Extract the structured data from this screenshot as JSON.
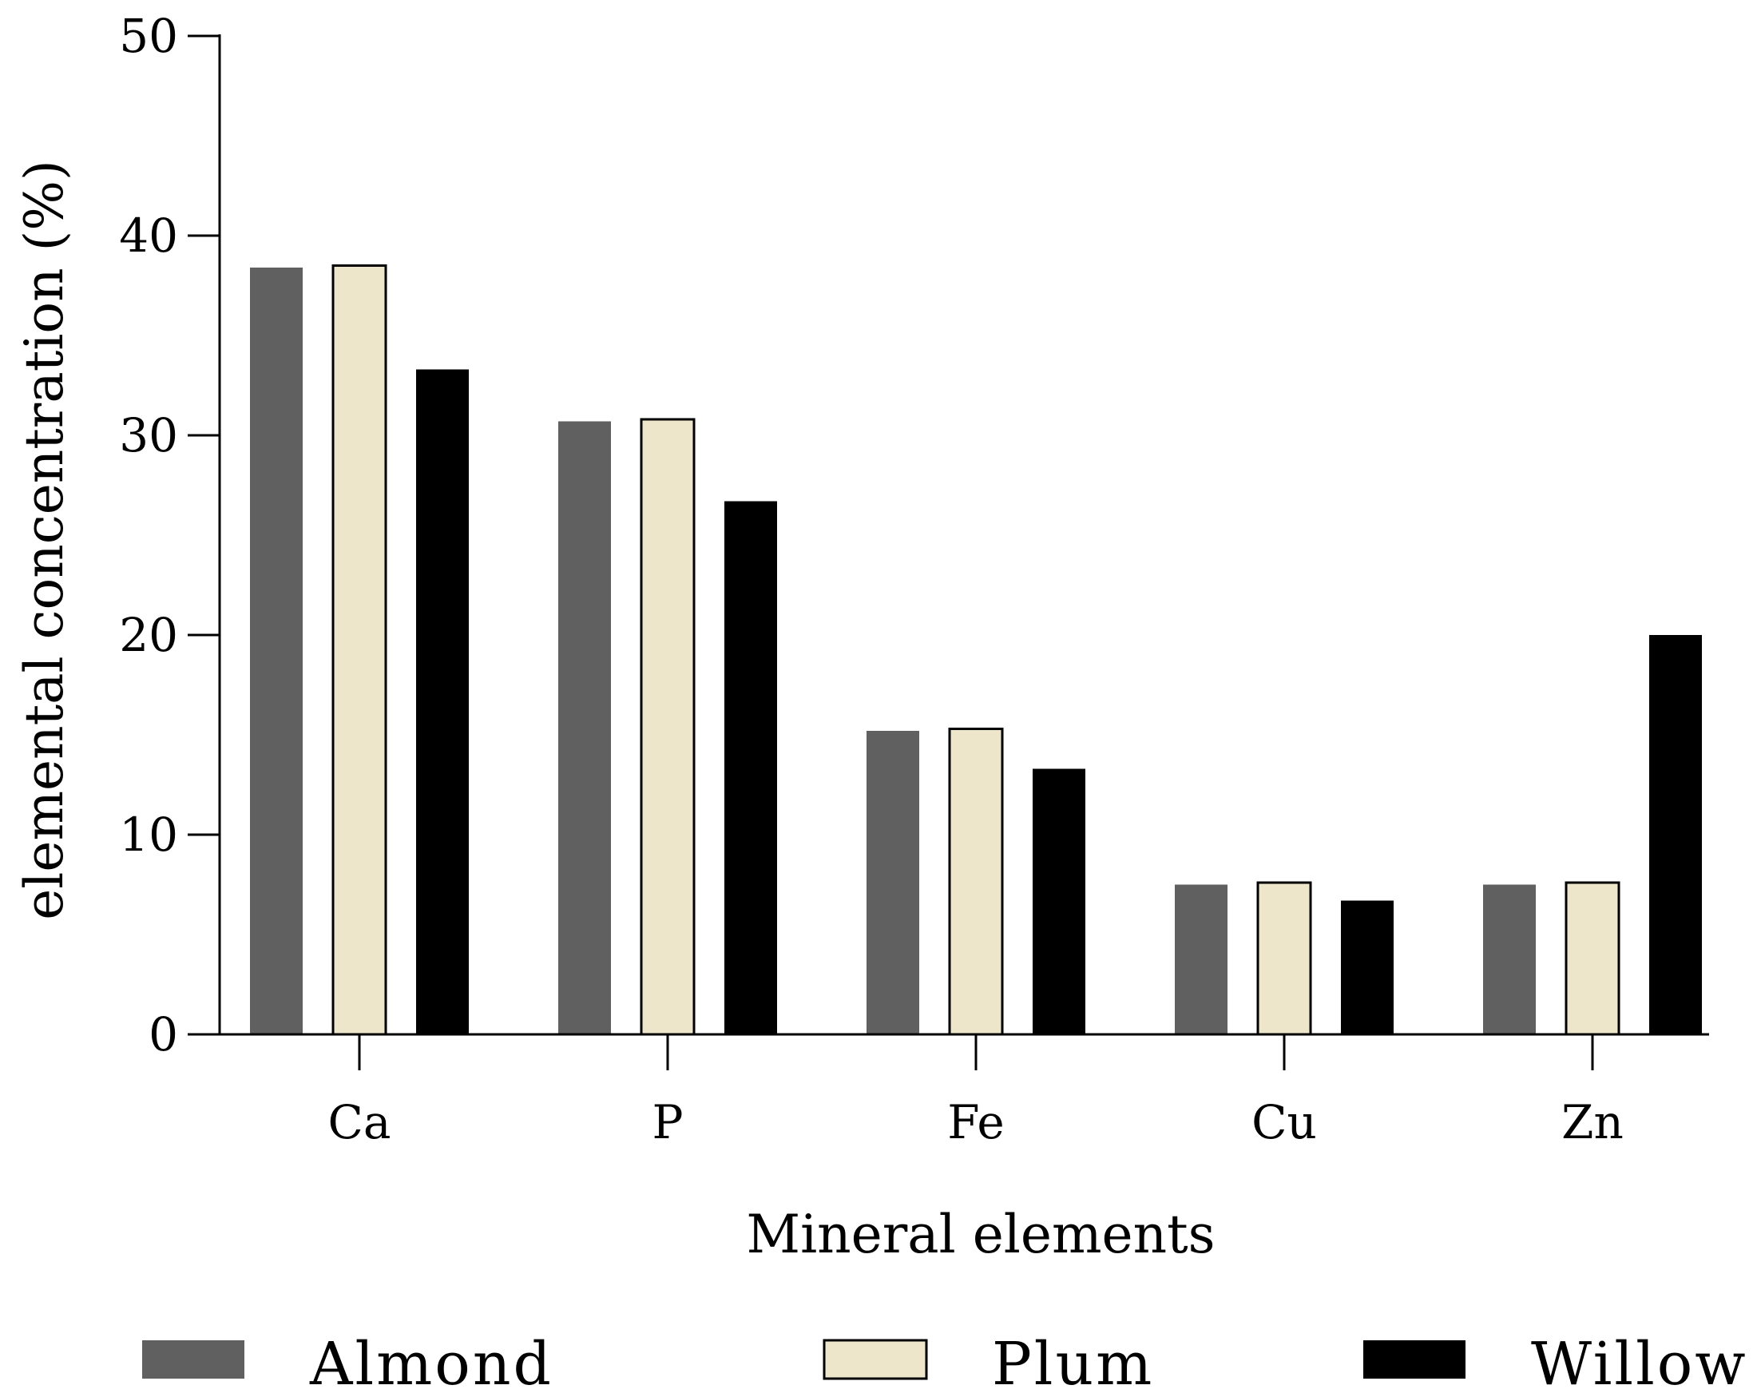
{
  "chart_data": {
    "type": "bar",
    "title": "",
    "xlabel": "Mineral elements",
    "ylabel": "elemental concentration (%)",
    "ylim": [
      0,
      50
    ],
    "yticks": [
      0,
      10,
      20,
      30,
      40,
      50
    ],
    "categories": [
      "Ca",
      "P",
      "Fe",
      "Cu",
      "Zn"
    ],
    "series": [
      {
        "name": "Almond",
        "color": "#606060",
        "outline": false,
        "values": [
          38.4,
          30.7,
          15.2,
          7.5,
          7.5
        ]
      },
      {
        "name": "Plum",
        "color": "#ede6cb",
        "outline": true,
        "values": [
          38.5,
          30.8,
          15.3,
          7.6,
          7.6
        ]
      },
      {
        "name": "Willow",
        "color": "#000000",
        "outline": false,
        "values": [
          33.3,
          26.7,
          13.3,
          6.7,
          20.0
        ]
      }
    ],
    "legend_position": "bottom",
    "grid": false
  }
}
